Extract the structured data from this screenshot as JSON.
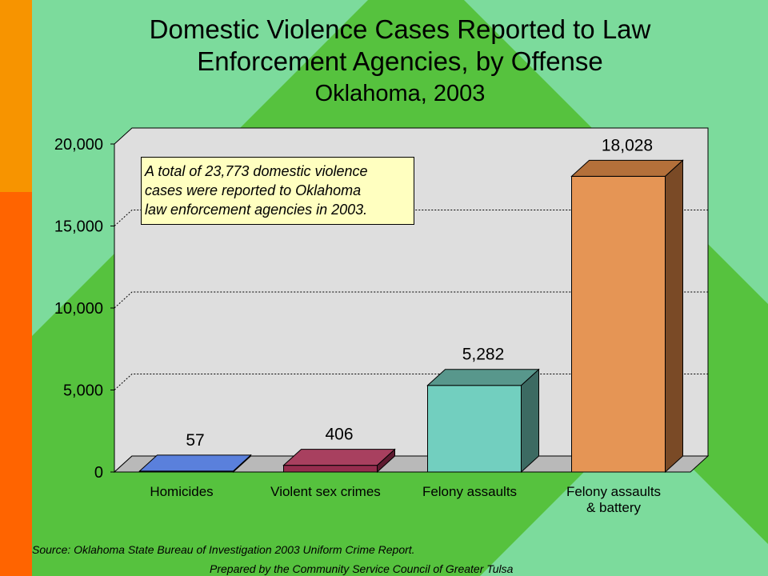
{
  "header": {
    "title_line1": "Domestic Violence Cases Reported to Law",
    "title_line2": "Enforcement Agencies, by Offense",
    "subtitle": "Oklahoma, 2003"
  },
  "chart_data": {
    "type": "bar",
    "categories": [
      [
        "Homicides"
      ],
      [
        "Violent sex crimes"
      ],
      [
        "Felony assaults"
      ],
      [
        "Felony assaults",
        "& battery"
      ]
    ],
    "values": [
      57,
      406,
      5282,
      18028
    ],
    "data_labels": [
      "57",
      "406",
      "5,282",
      "18,028"
    ],
    "ylim": [
      0,
      20000
    ],
    "yticks": [
      0,
      5000,
      10000,
      15000,
      20000
    ],
    "ytick_labels": [
      "0",
      "5,000",
      "10,000",
      "15,000",
      "20,000"
    ],
    "grid": true,
    "bar_colors": [
      {
        "front": "#3b62c4",
        "top": "#5a80dc",
        "side": "#223e86"
      },
      {
        "front": "#962d4e",
        "top": "#a8405f",
        "side": "#5e1a30"
      },
      {
        "front": "#72cfbf",
        "top": "#58978c",
        "side": "#3c6a62"
      },
      {
        "front": "#e59555",
        "top": "#b4703a",
        "side": "#7a4a26"
      }
    ]
  },
  "annotation": {
    "lines": [
      "A total of 23,773 domestic violence",
      "cases were reported to Oklahoma",
      "law enforcement agencies in 2003."
    ]
  },
  "footer": {
    "source": "Source:  Oklahoma State Bureau of Investigation 2003 Uniform Crime Report.",
    "prepared": "Prepared by the Community Service Council of Greater Tulsa"
  },
  "colors": {
    "background_green": "#56c23e",
    "background_light": "#7cdb9c",
    "accent_orange": "#f79400",
    "accent_red_orange": "#ff6400",
    "plot_area": "#dedede"
  }
}
